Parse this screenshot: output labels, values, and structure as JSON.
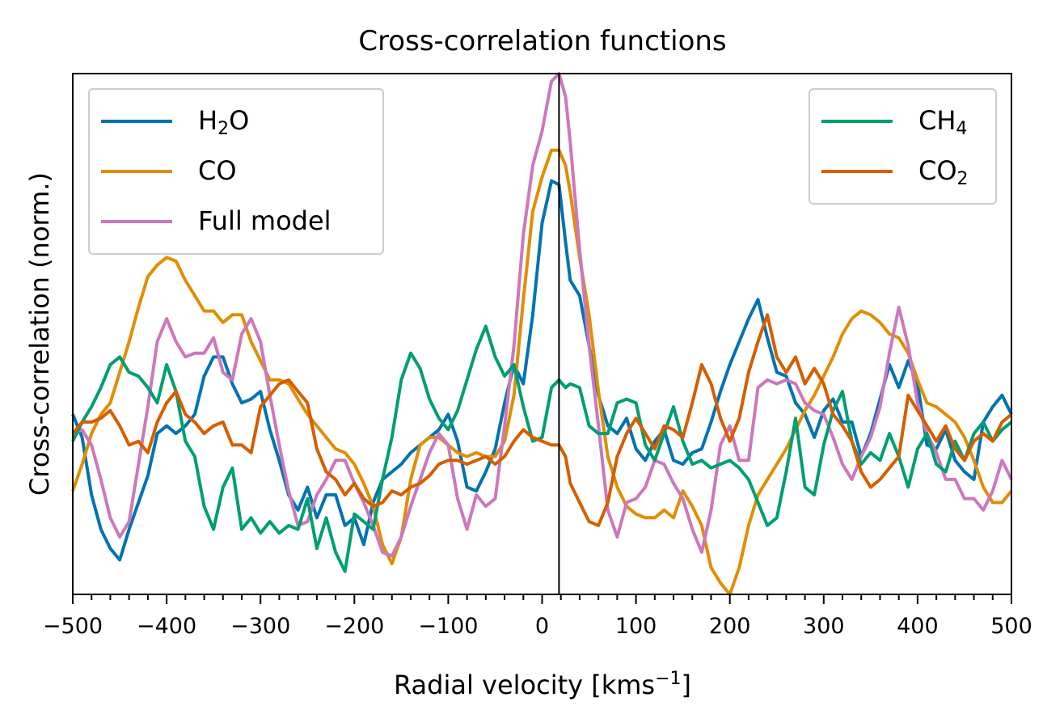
{
  "chart_data": {
    "type": "line",
    "title": "Cross-correlation functions",
    "xlabel": "Radial velocity [kms",
    "xlabel_sup": "−1",
    "xlabel_end": "]",
    "ylabel": "Cross-correlation (norm.)",
    "xlim": [
      -500,
      500
    ],
    "ylim": [
      -0.3,
      1.06
    ],
    "x_ticks": [
      -500,
      -400,
      -300,
      -200,
      -100,
      0,
      100,
      200,
      300,
      400,
      500
    ],
    "x_tick_labels": [
      "−500",
      "−400",
      "−300",
      "−200",
      "−100",
      "0",
      "100",
      "200",
      "300",
      "400",
      "500"
    ],
    "minor_tick_step": 20,
    "yticks_shown": false,
    "vline_x": 18,
    "legends": {
      "left": [
        {
          "base": "H",
          "sub": "2",
          "tail": "O",
          "series": 0
        },
        {
          "base": "CO",
          "sub": "",
          "tail": "",
          "series": 1
        },
        {
          "base": "Full model",
          "sub": "",
          "tail": "",
          "series": 2
        }
      ],
      "right": [
        {
          "base": "CH",
          "sub": "4",
          "tail": "",
          "series": 3
        },
        {
          "base": "CO",
          "sub": "2",
          "tail": "",
          "series": 4
        }
      ]
    },
    "series": [
      {
        "name": "H2O",
        "color": "#0173b2",
        "x": [
          -500,
          -490,
          -480,
          -470,
          -460,
          -450,
          -440,
          -430,
          -420,
          -410,
          -400,
          -390,
          -380,
          -370,
          -360,
          -350,
          -340,
          -330,
          -320,
          -310,
          -300,
          -290,
          -280,
          -270,
          -260,
          -250,
          -240,
          -230,
          -220,
          -210,
          -200,
          -190,
          -180,
          -170,
          -160,
          -150,
          -140,
          -130,
          -120,
          -110,
          -100,
          -90,
          -80,
          -70,
          -60,
          -50,
          -40,
          -30,
          -20,
          -10,
          0,
          10,
          18,
          25,
          30,
          40,
          50,
          60,
          70,
          80,
          90,
          100,
          110,
          120,
          130,
          140,
          150,
          160,
          170,
          180,
          190,
          200,
          210,
          220,
          230,
          240,
          250,
          260,
          270,
          280,
          290,
          300,
          310,
          320,
          330,
          340,
          350,
          360,
          370,
          380,
          390,
          400,
          410,
          420,
          430,
          440,
          450,
          460,
          470,
          480,
          490,
          500
        ],
        "y": [
          0.17,
          0.11,
          -0.04,
          -0.13,
          -0.18,
          -0.21,
          -0.13,
          -0.06,
          0.01,
          0.12,
          0.14,
          0.12,
          0.14,
          0.17,
          0.27,
          0.32,
          0.32,
          0.25,
          0.2,
          0.21,
          0.23,
          0.13,
          0.05,
          -0.04,
          -0.08,
          -0.02,
          -0.1,
          -0.04,
          -0.04,
          -0.12,
          -0.1,
          -0.17,
          -0.06,
          0.0,
          0.02,
          0.04,
          0.07,
          0.09,
          0.11,
          0.13,
          0.17,
          0.1,
          -0.02,
          -0.03,
          0.02,
          0.08,
          0.2,
          0.3,
          0.25,
          0.43,
          0.67,
          0.78,
          0.77,
          0.62,
          0.52,
          0.48,
          0.35,
          0.22,
          0.14,
          0.12,
          0.16,
          0.08,
          0.05,
          0.1,
          0.13,
          0.05,
          0.04,
          0.07,
          0.08,
          0.15,
          0.23,
          0.3,
          0.36,
          0.42,
          0.47,
          0.37,
          0.28,
          0.27,
          0.2,
          0.17,
          0.11,
          0.18,
          0.21,
          0.15,
          0.15,
          0.06,
          0.12,
          0.21,
          0.3,
          0.24,
          0.31,
          0.25,
          0.09,
          0.08,
          0.13,
          0.05,
          0.02,
          0.0,
          0.15,
          0.19,
          0.22,
          0.17
        ]
      },
      {
        "name": "CO",
        "color": "#de8f05",
        "x": [
          -500,
          -490,
          -480,
          -470,
          -460,
          -450,
          -440,
          -430,
          -420,
          -410,
          -400,
          -390,
          -380,
          -370,
          -360,
          -350,
          -340,
          -330,
          -320,
          -310,
          -300,
          -290,
          -280,
          -270,
          -260,
          -250,
          -240,
          -230,
          -220,
          -210,
          -200,
          -190,
          -180,
          -170,
          -160,
          -150,
          -140,
          -130,
          -120,
          -110,
          -100,
          -90,
          -80,
          -70,
          -60,
          -50,
          -40,
          -30,
          -20,
          -10,
          0,
          10,
          18,
          25,
          30,
          40,
          50,
          60,
          70,
          80,
          90,
          100,
          110,
          120,
          130,
          140,
          150,
          160,
          170,
          180,
          190,
          200,
          210,
          220,
          230,
          240,
          250,
          260,
          270,
          280,
          290,
          300,
          310,
          320,
          330,
          340,
          350,
          360,
          370,
          380,
          390,
          400,
          410,
          420,
          430,
          440,
          450,
          460,
          470,
          480,
          490,
          500
        ],
        "y": [
          -0.03,
          0.04,
          0.12,
          0.17,
          0.2,
          0.28,
          0.36,
          0.45,
          0.53,
          0.56,
          0.58,
          0.57,
          0.52,
          0.48,
          0.44,
          0.44,
          0.41,
          0.43,
          0.43,
          0.36,
          0.31,
          0.26,
          0.26,
          0.25,
          0.21,
          0.17,
          0.14,
          0.11,
          0.08,
          0.07,
          0.04,
          -0.01,
          -0.07,
          -0.17,
          -0.22,
          -0.15,
          0.0,
          0.09,
          0.11,
          0.11,
          0.09,
          0.07,
          0.06,
          0.07,
          0.06,
          0.06,
          0.1,
          0.22,
          0.47,
          0.7,
          0.79,
          0.86,
          0.86,
          0.82,
          0.75,
          0.58,
          0.43,
          0.23,
          0.06,
          -0.02,
          -0.07,
          -0.09,
          -0.1,
          -0.1,
          -0.08,
          -0.1,
          -0.03,
          -0.07,
          -0.12,
          -0.23,
          -0.27,
          -0.3,
          -0.23,
          -0.12,
          -0.04,
          0.0,
          0.04,
          0.08,
          0.13,
          0.18,
          0.22,
          0.27,
          0.32,
          0.38,
          0.42,
          0.44,
          0.43,
          0.41,
          0.38,
          0.37,
          0.33,
          0.26,
          0.2,
          0.19,
          0.17,
          0.15,
          0.11,
          0.05,
          -0.02,
          -0.06,
          -0.06,
          -0.03
        ]
      },
      {
        "name": "Full model",
        "color": "#cc78bc",
        "x": [
          -500,
          -490,
          -480,
          -470,
          -460,
          -450,
          -440,
          -430,
          -420,
          -410,
          -400,
          -390,
          -380,
          -370,
          -360,
          -350,
          -340,
          -330,
          -320,
          -310,
          -300,
          -290,
          -280,
          -270,
          -260,
          -250,
          -240,
          -230,
          -220,
          -210,
          -200,
          -190,
          -180,
          -170,
          -160,
          -150,
          -140,
          -130,
          -120,
          -110,
          -100,
          -90,
          -80,
          -70,
          -60,
          -50,
          -40,
          -30,
          -20,
          -10,
          0,
          10,
          18,
          25,
          30,
          40,
          50,
          60,
          70,
          80,
          90,
          100,
          110,
          120,
          130,
          140,
          150,
          160,
          170,
          180,
          190,
          200,
          210,
          220,
          230,
          240,
          250,
          260,
          270,
          280,
          290,
          300,
          310,
          320,
          330,
          340,
          350,
          360,
          370,
          380,
          390,
          400,
          410,
          420,
          430,
          440,
          450,
          460,
          470,
          480,
          490,
          500
        ],
        "y": [
          0.12,
          0.13,
          0.09,
          0.0,
          -0.1,
          -0.15,
          -0.11,
          0.04,
          0.19,
          0.36,
          0.42,
          0.36,
          0.32,
          0.33,
          0.33,
          0.37,
          0.28,
          0.26,
          0.38,
          0.42,
          0.36,
          0.22,
          0.09,
          -0.03,
          -0.12,
          -0.11,
          -0.04,
          0.0,
          0.05,
          0.05,
          -0.01,
          -0.06,
          -0.12,
          -0.19,
          -0.2,
          -0.15,
          -0.07,
          0.0,
          0.07,
          0.12,
          0.09,
          -0.05,
          -0.13,
          -0.04,
          -0.07,
          -0.05,
          0.14,
          0.35,
          0.64,
          0.82,
          0.91,
          1.04,
          1.06,
          1.0,
          0.88,
          0.6,
          0.35,
          0.14,
          -0.08,
          -0.15,
          -0.06,
          -0.05,
          -0.02,
          0.05,
          0.04,
          -0.01,
          -0.05,
          -0.13,
          -0.19,
          -0.08,
          0.09,
          0.14,
          0.05,
          0.05,
          0.24,
          0.26,
          0.25,
          0.26,
          0.25,
          0.2,
          0.18,
          0.17,
          0.11,
          0.04,
          0.0,
          0.06,
          0.11,
          0.19,
          0.33,
          0.45,
          0.35,
          0.2,
          0.12,
          0.07,
          0.0,
          0.0,
          -0.05,
          -0.05,
          -0.08,
          -0.03,
          0.05,
          0.0
        ]
      },
      {
        "name": "CH4",
        "color": "#029e73",
        "x": [
          -500,
          -490,
          -480,
          -470,
          -460,
          -450,
          -440,
          -430,
          -420,
          -410,
          -400,
          -390,
          -380,
          -370,
          -360,
          -350,
          -340,
          -330,
          -320,
          -310,
          -300,
          -290,
          -280,
          -270,
          -260,
          -250,
          -240,
          -230,
          -220,
          -210,
          -200,
          -190,
          -180,
          -170,
          -160,
          -150,
          -140,
          -130,
          -120,
          -110,
          -100,
          -90,
          -80,
          -70,
          -60,
          -50,
          -40,
          -30,
          -20,
          -10,
          0,
          10,
          18,
          25,
          30,
          40,
          50,
          60,
          70,
          80,
          90,
          100,
          110,
          120,
          130,
          140,
          150,
          160,
          170,
          180,
          190,
          200,
          210,
          220,
          230,
          240,
          250,
          260,
          270,
          280,
          290,
          300,
          310,
          320,
          330,
          340,
          350,
          360,
          370,
          380,
          390,
          400,
          410,
          420,
          430,
          440,
          450,
          460,
          470,
          480,
          490,
          500
        ],
        "y": [
          0.1,
          0.15,
          0.19,
          0.24,
          0.3,
          0.32,
          0.28,
          0.27,
          0.24,
          0.2,
          0.3,
          0.23,
          0.1,
          0.06,
          -0.07,
          -0.13,
          -0.02,
          0.03,
          -0.13,
          -0.1,
          -0.14,
          -0.11,
          -0.14,
          -0.12,
          -0.13,
          -0.05,
          -0.18,
          -0.1,
          -0.19,
          -0.24,
          -0.09,
          -0.11,
          -0.13,
          0.0,
          0.11,
          0.26,
          0.33,
          0.29,
          0.21,
          0.16,
          0.13,
          0.18,
          0.26,
          0.34,
          0.4,
          0.32,
          0.27,
          0.3,
          0.19,
          0.1,
          0.11,
          0.24,
          0.26,
          0.24,
          0.25,
          0.24,
          0.14,
          0.12,
          0.12,
          0.2,
          0.21,
          0.2,
          0.09,
          0.05,
          0.12,
          0.19,
          0.1,
          0.04,
          0.05,
          0.03,
          0.04,
          0.05,
          0.03,
          0.0,
          -0.06,
          -0.12,
          -0.1,
          0.02,
          0.16,
          -0.02,
          -0.04,
          0.09,
          0.18,
          0.23,
          0.1,
          0.04,
          0.07,
          0.05,
          0.12,
          0.06,
          -0.02,
          0.08,
          0.12,
          0.04,
          0.02,
          0.1,
          0.05,
          0.12,
          0.15,
          0.1,
          0.13,
          0.15
        ]
      },
      {
        "name": "CO2",
        "color": "#d55e00",
        "x": [
          -500,
          -490,
          -480,
          -470,
          -460,
          -450,
          -440,
          -430,
          -420,
          -410,
          -400,
          -390,
          -380,
          -370,
          -360,
          -350,
          -340,
          -330,
          -320,
          -310,
          -300,
          -290,
          -280,
          -270,
          -260,
          -250,
          -240,
          -230,
          -220,
          -210,
          -200,
          -190,
          -180,
          -170,
          -160,
          -150,
          -140,
          -130,
          -120,
          -110,
          -100,
          -90,
          -80,
          -70,
          -60,
          -50,
          -40,
          -30,
          -20,
          -10,
          0,
          10,
          18,
          25,
          30,
          40,
          50,
          60,
          70,
          80,
          90,
          100,
          110,
          120,
          130,
          140,
          150,
          160,
          170,
          180,
          190,
          200,
          210,
          220,
          230,
          240,
          250,
          260,
          270,
          280,
          290,
          300,
          310,
          320,
          330,
          340,
          350,
          360,
          370,
          380,
          390,
          400,
          410,
          420,
          430,
          440,
          450,
          460,
          470,
          480,
          490,
          500
        ],
        "y": [
          0.12,
          0.15,
          0.15,
          0.16,
          0.18,
          0.14,
          0.09,
          0.1,
          0.07,
          0.15,
          0.2,
          0.23,
          0.17,
          0.15,
          0.12,
          0.14,
          0.15,
          0.09,
          0.09,
          0.07,
          0.19,
          0.22,
          0.25,
          0.26,
          0.23,
          0.2,
          0.08,
          0.02,
          0.0,
          -0.04,
          -0.01,
          -0.05,
          -0.07,
          -0.06,
          -0.03,
          -0.04,
          -0.02,
          -0.01,
          0.01,
          0.04,
          0.05,
          0.05,
          0.04,
          0.05,
          0.06,
          0.04,
          0.06,
          0.1,
          0.13,
          0.11,
          0.1,
          0.09,
          0.09,
          0.06,
          -0.01,
          -0.06,
          -0.11,
          -0.12,
          -0.06,
          0.06,
          0.12,
          0.16,
          0.12,
          0.08,
          0.14,
          0.13,
          0.11,
          0.2,
          0.3,
          0.25,
          0.16,
          0.1,
          0.16,
          0.28,
          0.36,
          0.43,
          0.32,
          0.28,
          0.32,
          0.25,
          0.29,
          0.25,
          0.17,
          0.14,
          0.1,
          0.02,
          -0.02,
          0.0,
          0.03,
          0.06,
          0.22,
          0.18,
          0.14,
          0.1,
          0.14,
          0.08,
          0.05,
          0.1,
          0.12,
          0.1,
          0.15,
          0.17
        ]
      }
    ]
  }
}
